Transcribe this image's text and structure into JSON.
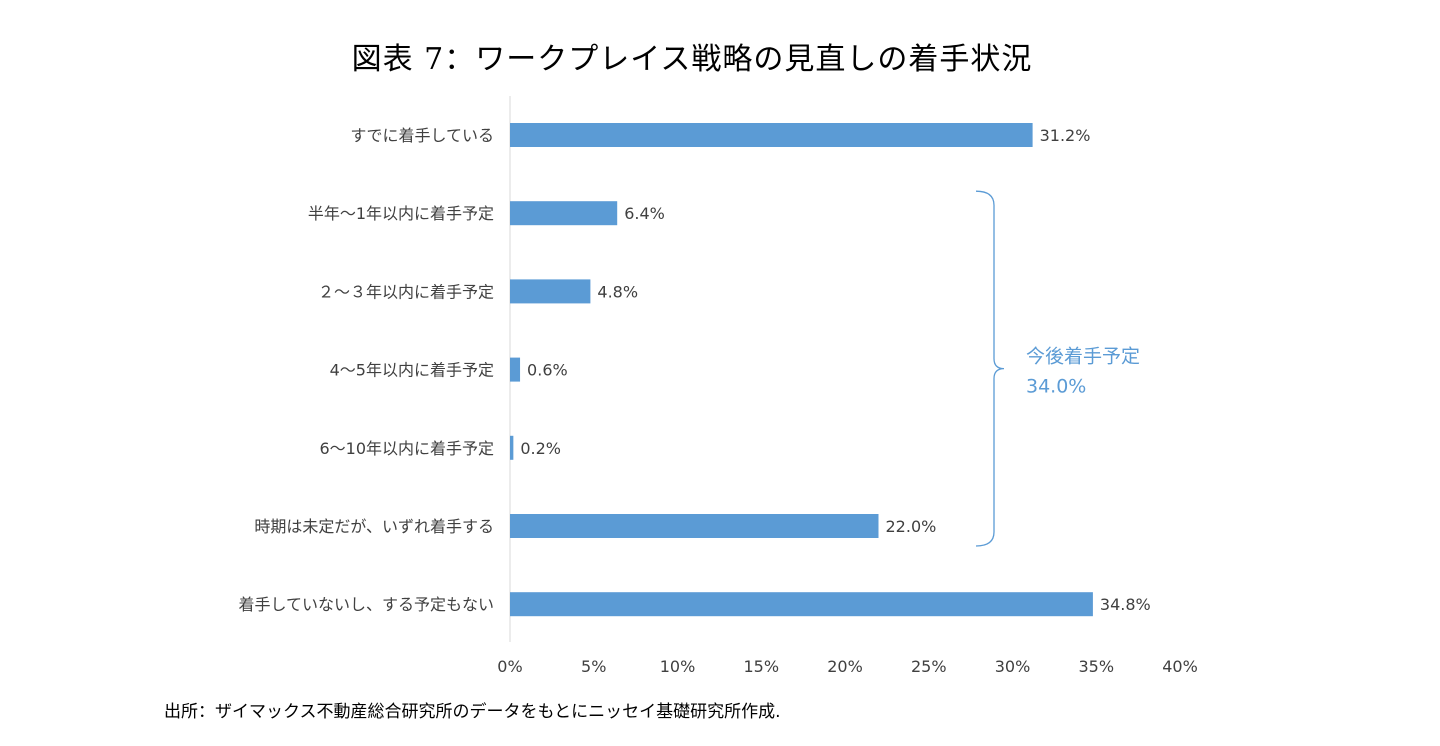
{
  "title": "図表 7：ワークプレイス戦略の見直しの着手状況",
  "source": "出所：ザイマックス不動産総合研究所のデータをもとにニッセイ基礎研究所作成.",
  "chart_data": {
    "type": "bar",
    "orientation": "horizontal",
    "categories": [
      "すでに着手している",
      "半年～1年以内に着手予定",
      "２～３年以内に着手予定",
      "4～5年以内に着手予定",
      "6～10年以内に着手予定",
      "時期は未定だが、いずれ着手する",
      "着手していないし、する予定もない"
    ],
    "values": [
      31.2,
      6.4,
      4.8,
      0.6,
      0.2,
      22.0,
      34.8
    ],
    "value_labels": [
      "31.2%",
      "6.4%",
      "4.8%",
      "0.6%",
      "0.2%",
      "22.0%",
      "34.8%"
    ],
    "xlim": [
      0,
      40
    ],
    "xticks": [
      "0%",
      "5%",
      "10%",
      "15%",
      "20%",
      "25%",
      "30%",
      "35%",
      "40%"
    ],
    "grid": false,
    "bar_color": "#5b9bd5",
    "annotation": {
      "text": "今後着手予定",
      "value": "34.0%",
      "spans_categories": [
        1,
        5
      ]
    }
  }
}
